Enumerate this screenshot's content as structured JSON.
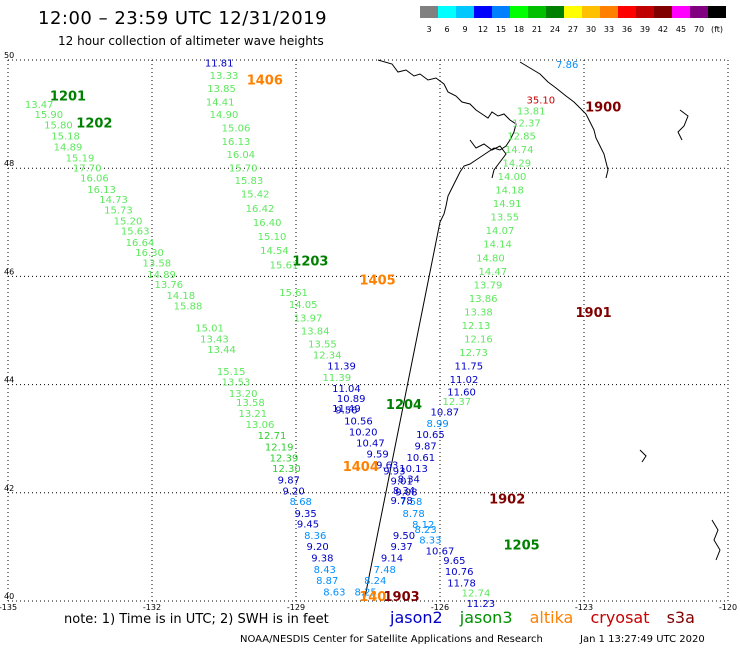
{
  "header": {
    "title": "12:00 – 23:59 UTC 12/31/2019",
    "subtitle": "12 hour collection of altimeter wave heights"
  },
  "colorbar": {
    "colors": [
      "#808080",
      "#00ffff",
      "#00c8ff",
      "#0000ff",
      "#0080ff",
      "#00ff00",
      "#00c000",
      "#008000",
      "#ffff00",
      "#ffc000",
      "#ff8000",
      "#ff0000",
      "#c00000",
      "#800000",
      "#ff00ff",
      "#800080",
      "#000000"
    ],
    "labels": [
      "3",
      "6",
      "9",
      "12",
      "15",
      "18",
      "21",
      "24",
      "27",
      "30",
      "33",
      "36",
      "39",
      "42",
      "45",
      "70",
      "(ft)"
    ]
  },
  "axes": {
    "lat_labels": [
      "50",
      "48",
      "46",
      "44",
      "42",
      "40"
    ],
    "lon_labels": [
      "-135",
      "-132",
      "-129",
      "-126",
      "-123",
      "-120"
    ]
  },
  "swh_colors": {
    "c12": "#0000c8",
    "c15": "#0090ff",
    "c18": "#33cc33",
    "c21": "#5ee85e",
    "c33": "#c80000",
    "c36": "#800000"
  },
  "tracks": [
    {
      "id": "t1",
      "labels": [
        {
          "t": "11.81",
          "c": "c12",
          "lon": -130.6,
          "lat": 49.88
        },
        {
          "t": "13.33",
          "c": "c21",
          "lon": -130.5,
          "lat": 49.65
        },
        {
          "t": "13.85",
          "c": "c21",
          "lon": -130.55,
          "lat": 49.41
        },
        {
          "t": "14.41",
          "c": "c21",
          "lon": -130.58,
          "lat": 49.16
        },
        {
          "t": "14.90",
          "c": "c21",
          "lon": -130.5,
          "lat": 48.93
        },
        {
          "t": "15.06",
          "c": "c21",
          "lon": -130.25,
          "lat": 48.68
        },
        {
          "t": "16.13",
          "c": "c21",
          "lon": -130.25,
          "lat": 48.43
        },
        {
          "t": "16.04",
          "c": "c21",
          "lon": -130.15,
          "lat": 48.19
        },
        {
          "t": "15.70",
          "c": "c21",
          "lon": -130.1,
          "lat": 47.94
        },
        {
          "t": "15.83",
          "c": "c21",
          "lon": -129.98,
          "lat": 47.71
        },
        {
          "t": "15.42",
          "c": "c21",
          "lon": -129.85,
          "lat": 47.46
        },
        {
          "t": "16.42",
          "c": "c21",
          "lon": -129.75,
          "lat": 47.19
        },
        {
          "t": "16.40",
          "c": "c21",
          "lon": -129.6,
          "lat": 46.93
        },
        {
          "t": "15.10",
          "c": "c21",
          "lon": -129.5,
          "lat": 46.67
        },
        {
          "t": "14.54",
          "c": "c21",
          "lon": -129.45,
          "lat": 46.41
        },
        {
          "t": "15.61",
          "c": "c21",
          "lon": -129.25,
          "lat": 46.15
        },
        {
          "t": "15.61",
          "c": "c21",
          "lon": -129.05,
          "lat": 45.64
        },
        {
          "t": "14.05",
          "c": "c21",
          "lon": -128.85,
          "lat": 45.42
        },
        {
          "t": "13.97",
          "c": "c21",
          "lon": -128.75,
          "lat": 45.17
        },
        {
          "t": "13.84",
          "c": "c21",
          "lon": -128.6,
          "lat": 44.93
        },
        {
          "t": "13.55",
          "c": "c21",
          "lon": -128.45,
          "lat": 44.69
        },
        {
          "t": "12.34",
          "c": "c21",
          "lon": -128.35,
          "lat": 44.48
        },
        {
          "t": "11.39",
          "c": "c12",
          "lon": -128.05,
          "lat": 44.28
        },
        {
          "t": "11.39",
          "c": "c21",
          "lon": -128.15,
          "lat": 44.07
        },
        {
          "t": "11.04",
          "c": "c12",
          "lon": -127.95,
          "lat": 43.86
        },
        {
          "t": "10.89",
          "c": "c12",
          "lon": -127.85,
          "lat": 43.68
        },
        {
          "t": "11.49",
          "c": "c12",
          "lon": -127.95,
          "lat": 43.49
        }
      ]
    },
    {
      "id": "t2",
      "labels": [
        {
          "t": "13.47",
          "c": "c21",
          "lon": -134.35,
          "lat": 49.11
        },
        {
          "t": "15.90",
          "c": "c21",
          "lon": -134.15,
          "lat": 48.93
        },
        {
          "t": "15.80",
          "c": "c21",
          "lon": -133.95,
          "lat": 48.73
        },
        {
          "t": "15.18",
          "c": "c21",
          "lon": -133.8,
          "lat": 48.53
        },
        {
          "t": "14.89",
          "c": "c21",
          "lon": -133.75,
          "lat": 48.33
        },
        {
          "t": "15.19",
          "c": "c21",
          "lon": -133.5,
          "lat": 48.12
        },
        {
          "t": "17.70",
          "c": "c21",
          "lon": -133.35,
          "lat": 47.94
        },
        {
          "t": "16.06",
          "c": "c21",
          "lon": -133.2,
          "lat": 47.75
        },
        {
          "t": "16.13",
          "c": "c21",
          "lon": -133.05,
          "lat": 47.54
        },
        {
          "t": "14.73",
          "c": "c21",
          "lon": -132.8,
          "lat": 47.36
        },
        {
          "t": "15.73",
          "c": "c21",
          "lon": -132.7,
          "lat": 47.16
        },
        {
          "t": "15.20",
          "c": "c21",
          "lon": -132.5,
          "lat": 46.96
        },
        {
          "t": "15.63",
          "c": "c21",
          "lon": -132.35,
          "lat": 46.77
        },
        {
          "t": "16.64",
          "c": "c21",
          "lon": -132.25,
          "lat": 46.56
        },
        {
          "t": "16.30",
          "c": "c21",
          "lon": -132.05,
          "lat": 46.38
        },
        {
          "t": "13.58",
          "c": "c21",
          "lon": -131.9,
          "lat": 46.18
        },
        {
          "t": "14.89",
          "c": "c21",
          "lon": -131.8,
          "lat": 45.97
        },
        {
          "t": "13.76",
          "c": "c21",
          "lon": -131.65,
          "lat": 45.79
        },
        {
          "t": "14.18",
          "c": "c21",
          "lon": -131.4,
          "lat": 45.58
        },
        {
          "t": "15.88",
          "c": "c21",
          "lon": -131.25,
          "lat": 45.39
        },
        {
          "t": "15.01",
          "c": "c21",
          "lon": -130.8,
          "lat": 44.98
        },
        {
          "t": "13.43",
          "c": "c21",
          "lon": -130.7,
          "lat": 44.78
        },
        {
          "t": "13.44",
          "c": "c21",
          "lon": -130.55,
          "lat": 44.58
        },
        {
          "t": "15.15",
          "c": "c21",
          "lon": -130.35,
          "lat": 44.18
        },
        {
          "t": "13.53",
          "c": "c21",
          "lon": -130.25,
          "lat": 43.98
        },
        {
          "t": "13.20",
          "c": "c21",
          "lon": -130.1,
          "lat": 43.77
        },
        {
          "t": "13.58",
          "c": "c21",
          "lon": -129.95,
          "lat": 43.6
        },
        {
          "t": "13.21",
          "c": "c21",
          "lon": -129.9,
          "lat": 43.4
        },
        {
          "t": "13.06",
          "c": "c21",
          "lon": -129.75,
          "lat": 43.2
        },
        {
          "t": "12.71",
          "c": "c18",
          "lon": -129.5,
          "lat": 42.99
        },
        {
          "t": "12.19",
          "c": "c18",
          "lon": -129.35,
          "lat": 42.78
        },
        {
          "t": "12.39",
          "c": "c18",
          "lon": -129.25,
          "lat": 42.58
        },
        {
          "t": "12.30",
          "c": "c18",
          "lon": -129.2,
          "lat": 42.38
        },
        {
          "t": "9.87",
          "c": "c12",
          "lon": -129.15,
          "lat": 42.17
        },
        {
          "t": "9.20",
          "c": "c12",
          "lon": -129.05,
          "lat": 41.97
        },
        {
          "t": "8.68",
          "c": "c15",
          "lon": -128.9,
          "lat": 41.77
        },
        {
          "t": "9.35",
          "c": "c12",
          "lon": -128.8,
          "lat": 41.55
        },
        {
          "t": "9.45",
          "c": "c12",
          "lon": -128.75,
          "lat": 41.36
        },
        {
          "t": "8.36",
          "c": "c15",
          "lon": -128.6,
          "lat": 41.15
        },
        {
          "t": "9.20",
          "c": "c12",
          "lon": -128.55,
          "lat": 40.94
        },
        {
          "t": "9.38",
          "c": "c12",
          "lon": -128.45,
          "lat": 40.73
        },
        {
          "t": "8.43",
          "c": "c15",
          "lon": -128.4,
          "lat": 40.52
        },
        {
          "t": "8.87",
          "c": "c15",
          "lon": -128.35,
          "lat": 40.31
        },
        {
          "t": "8.63",
          "c": "c15",
          "lon": -128.2,
          "lat": 40.1
        }
      ]
    },
    {
      "id": "t3",
      "labels": [
        {
          "t": "10.56",
          "c": "c12",
          "lon": -127.7,
          "lat": 43.26
        },
        {
          "t": "9.56",
          "c": "c12",
          "lon": -127.95,
          "lat": 43.47
        },
        {
          "t": "10.20",
          "c": "c12",
          "lon": -127.6,
          "lat": 43.06
        },
        {
          "t": "10.47",
          "c": "c12",
          "lon": -127.45,
          "lat": 42.86
        },
        {
          "t": "9.59",
          "c": "c12",
          "lon": -127.3,
          "lat": 42.65
        },
        {
          "t": "9.63",
          "c": "c12",
          "lon": -127.1,
          "lat": 42.45
        },
        {
          "t": "9.93",
          "c": "c12",
          "lon": -126.95,
          "lat": 42.34
        },
        {
          "t": "9.01",
          "c": "c12",
          "lon": -126.8,
          "lat": 42.15
        },
        {
          "t": "9.08",
          "c": "c12",
          "lon": -126.7,
          "lat": 41.95
        },
        {
          "t": "7.58",
          "c": "c15",
          "lon": -126.6,
          "lat": 41.77
        },
        {
          "t": "8.78",
          "c": "c15",
          "lon": -126.55,
          "lat": 41.55
        },
        {
          "t": "8.12",
          "c": "c15",
          "lon": -126.35,
          "lat": 41.35
        },
        {
          "t": "9.50",
          "c": "c12",
          "lon": -126.75,
          "lat": 41.15
        },
        {
          "t": "9.37",
          "c": "c12",
          "lon": -126.8,
          "lat": 40.94
        },
        {
          "t": "9.14",
          "c": "c12",
          "lon": -127.0,
          "lat": 40.73
        },
        {
          "t": "7.48",
          "c": "c15",
          "lon": -127.15,
          "lat": 40.52
        },
        {
          "t": "8.24",
          "c": "c15",
          "lon": -127.35,
          "lat": 40.31
        },
        {
          "t": "8.25",
          "c": "c15",
          "lon": -127.55,
          "lat": 40.1
        }
      ]
    },
    {
      "id": "t4",
      "labels": [
        {
          "t": "12.37",
          "c": "c21",
          "lon": -125.65,
          "lat": 43.62
        },
        {
          "t": "10.87",
          "c": "c12",
          "lon": -125.9,
          "lat": 43.43
        },
        {
          "t": "8.99",
          "c": "c15",
          "lon": -126.05,
          "lat": 43.22
        },
        {
          "t": "10.65",
          "c": "c12",
          "lon": -126.2,
          "lat": 43.01
        },
        {
          "t": "9.87",
          "c": "c12",
          "lon": -126.3,
          "lat": 42.8
        },
        {
          "t": "10.61",
          "c": "c12",
          "lon": -126.4,
          "lat": 42.59
        },
        {
          "t": "10.13",
          "c": "c12",
          "lon": -126.55,
          "lat": 42.38
        },
        {
          "t": "8.34",
          "c": "c12",
          "lon": -126.65,
          "lat": 42.19
        },
        {
          "t": "8.34",
          "c": "c12",
          "lon": -126.75,
          "lat": 41.98
        },
        {
          "t": "9.78",
          "c": "c12",
          "lon": -126.8,
          "lat": 41.79
        },
        {
          "t": "8.23",
          "c": "c15",
          "lon": -126.3,
          "lat": 41.26
        },
        {
          "t": "8.33",
          "c": "c15",
          "lon": -126.2,
          "lat": 41.06
        },
        {
          "t": "10.67",
          "c": "c12",
          "lon": -126.0,
          "lat": 40.86
        },
        {
          "t": "9.65",
          "c": "c12",
          "lon": -125.7,
          "lat": 40.68
        },
        {
          "t": "10.76",
          "c": "c12",
          "lon": -125.6,
          "lat": 40.48
        },
        {
          "t": "11.78",
          "c": "c12",
          "lon": -125.55,
          "lat": 40.27
        },
        {
          "t": "12.74",
          "c": "c21",
          "lon": -125.25,
          "lat": 40.08
        },
        {
          "t": "11.23",
          "c": "c12",
          "lon": -125.15,
          "lat": 39.89
        }
      ]
    },
    {
      "id": "t5",
      "labels": [
        {
          "t": "11.60",
          "c": "c12",
          "lon": -125.55,
          "lat": 43.8
        },
        {
          "t": "11.02",
          "c": "c12",
          "lon": -125.5,
          "lat": 44.03
        },
        {
          "t": "11.75",
          "c": "c12",
          "lon": -125.4,
          "lat": 44.28
        },
        {
          "t": "12.73",
          "c": "c21",
          "lon": -125.3,
          "lat": 44.53
        },
        {
          "t": "12.16",
          "c": "c21",
          "lon": -125.2,
          "lat": 44.78
        },
        {
          "t": "12.13",
          "c": "c21",
          "lon": -125.25,
          "lat": 45.03
        },
        {
          "t": "13.38",
          "c": "c21",
          "lon": -125.2,
          "lat": 45.28
        },
        {
          "t": "13.86",
          "c": "c21",
          "lon": -125.1,
          "lat": 45.53
        },
        {
          "t": "13.79",
          "c": "c21",
          "lon": -125.0,
          "lat": 45.78
        },
        {
          "t": "14.47",
          "c": "c21",
          "lon": -124.9,
          "lat": 46.03
        },
        {
          "t": "14.80",
          "c": "c21",
          "lon": -124.95,
          "lat": 46.28
        },
        {
          "t": "14.14",
          "c": "c21",
          "lon": -124.8,
          "lat": 46.53
        },
        {
          "t": "14.07",
          "c": "c21",
          "lon": -124.75,
          "lat": 46.78
        },
        {
          "t": "13.55",
          "c": "c21",
          "lon": -124.65,
          "lat": 47.03
        },
        {
          "t": "14.91",
          "c": "c21",
          "lon": -124.6,
          "lat": 47.28
        },
        {
          "t": "14.18",
          "c": "c21",
          "lon": -124.55,
          "lat": 47.53
        },
        {
          "t": "14.00",
          "c": "c21",
          "lon": -124.5,
          "lat": 47.78
        },
        {
          "t": "14.29",
          "c": "c21",
          "lon": -124.4,
          "lat": 48.03
        },
        {
          "t": "14.74",
          "c": "c21",
          "lon": -124.35,
          "lat": 48.28
        },
        {
          "t": "12.85",
          "c": "c21",
          "lon": -124.3,
          "lat": 48.53
        },
        {
          "t": "12.37",
          "c": "c21",
          "lon": -124.2,
          "lat": 48.77
        },
        {
          "t": "13.81",
          "c": "c21",
          "lon": -124.1,
          "lat": 48.99
        },
        {
          "t": "35.10",
          "c": "c33",
          "lon": -123.9,
          "lat": 49.2
        },
        {
          "t": "7.86",
          "c": "c15",
          "lon": -123.35,
          "lat": 49.85
        }
      ]
    }
  ],
  "passes": [
    {
      "t": "1201",
      "c": "#008000",
      "lon": -133.75,
      "lat": 49.25
    },
    {
      "t": "1202",
      "c": "#008000",
      "lon": -133.2,
      "lat": 48.75
    },
    {
      "t": "1406",
      "c": "#ff8000",
      "lon": -129.65,
      "lat": 49.55
    },
    {
      "t": "1203",
      "c": "#008000",
      "lon": -128.7,
      "lat": 46.2
    },
    {
      "t": "1405",
      "c": "#ff8000",
      "lon": -127.3,
      "lat": 45.85
    },
    {
      "t": "1204",
      "c": "#008000",
      "lon": -126.75,
      "lat": 43.55
    },
    {
      "t": "1404",
      "c": "#ff8000",
      "lon": -127.65,
      "lat": 42.4
    },
    {
      "t": "1900",
      "c": "#800000",
      "lon": -122.6,
      "lat": 49.05
    },
    {
      "t": "1901",
      "c": "#800000",
      "lon": -122.8,
      "lat": 45.25
    },
    {
      "t": "1902",
      "c": "#800000",
      "lon": -124.6,
      "lat": 41.8
    },
    {
      "t": "1205",
      "c": "#008000",
      "lon": -124.3,
      "lat": 40.95
    },
    {
      "t": "1903",
      "c": "#800000",
      "lon": -126.8,
      "lat": 40.0
    },
    {
      "t": "140",
      "c": "#ff8000",
      "lon": -127.4,
      "lat": 40.0
    }
  ],
  "footer": {
    "note": "note:  1) Time is in UTC;  2) SWH is in feet",
    "missions": [
      {
        "name": "jason2",
        "color": "#0000c8"
      },
      {
        "name": "jason3",
        "color": "#009000"
      },
      {
        "name": "altika",
        "color": "#ff8000"
      },
      {
        "name": "cryosat",
        "color": "#c80000"
      },
      {
        "name": "s3a",
        "color": "#800000"
      }
    ],
    "credit": "NOAA/NESDIS Center for Satellite Applications and Research",
    "timestamp": "Jan  1 13:27:49 UTC 2020"
  }
}
